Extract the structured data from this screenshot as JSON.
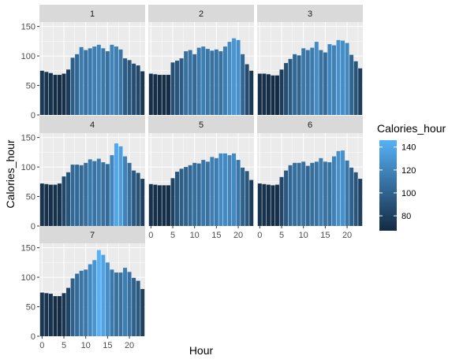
{
  "chart_data": {
    "type": "bar",
    "facet_labels": [
      "1",
      "2",
      "3",
      "4",
      "5",
      "6",
      "7"
    ],
    "x": [
      0,
      1,
      2,
      3,
      4,
      5,
      6,
      7,
      8,
      9,
      10,
      11,
      12,
      13,
      14,
      15,
      16,
      17,
      18,
      19,
      20,
      21,
      22,
      23
    ],
    "panels": [
      {
        "facet": "1",
        "values": [
          75,
          73,
          71,
          68,
          68,
          70,
          77,
          97,
          103,
          115,
          110,
          113,
          116,
          119,
          113,
          108,
          119,
          116,
          111,
          96,
          93,
          87,
          84,
          74
        ]
      },
      {
        "facet": "2",
        "values": [
          70,
          69,
          68,
          68,
          68,
          89,
          92,
          96,
          108,
          110,
          103,
          114,
          116,
          112,
          109,
          111,
          108,
          116,
          124,
          130,
          127,
          103,
          86,
          75
        ]
      },
      {
        "facet": "3",
        "values": [
          70,
          70,
          69,
          67,
          67,
          77,
          88,
          95,
          103,
          101,
          113,
          110,
          114,
          124,
          110,
          106,
          120,
          118,
          127,
          126,
          122,
          102,
          91,
          79
        ]
      },
      {
        "facet": "4",
        "values": [
          72,
          71,
          70,
          70,
          72,
          84,
          91,
          104,
          104,
          103,
          107,
          113,
          110,
          114,
          108,
          105,
          120,
          140,
          135,
          118,
          107,
          94,
          90,
          80
        ]
      },
      {
        "facet": "5",
        "values": [
          71,
          70,
          69,
          69,
          69,
          81,
          92,
          97,
          100,
          103,
          107,
          106,
          112,
          109,
          117,
          115,
          123,
          123,
          120,
          123,
          112,
          99,
          93,
          78
        ]
      },
      {
        "facet": "6",
        "values": [
          72,
          71,
          70,
          69,
          70,
          83,
          94,
          103,
          107,
          107,
          109,
          102,
          107,
          109,
          115,
          109,
          108,
          118,
          127,
          128,
          111,
          99,
          91,
          80
        ]
      },
      {
        "facet": "7",
        "values": [
          74,
          73,
          72,
          68,
          68,
          73,
          82,
          98,
          106,
          111,
          113,
          122,
          129,
          146,
          138,
          125,
          113,
          108,
          108,
          116,
          109,
          99,
          94,
          80
        ]
      }
    ],
    "xlabel": "Hour",
    "ylabel": "Calories_hour",
    "ylim": [
      0,
      150
    ],
    "yticks": [
      0,
      50,
      100,
      150
    ],
    "xticks": [
      0,
      5,
      10,
      15,
      20
    ],
    "legend": {
      "title": "Calories_hour",
      "position": "right",
      "ticks": [
        80,
        100,
        120,
        140
      ],
      "color_low": "#132B43",
      "color_high": "#56B1F7",
      "value_min": 67,
      "value_max": 146
    },
    "grid": true,
    "colors": {
      "panel_background": "#EBEBEB",
      "grid_major": "#FFFFFF",
      "strip_background": "#D9D9D9",
      "axis_text": "#4D4D4D"
    }
  }
}
